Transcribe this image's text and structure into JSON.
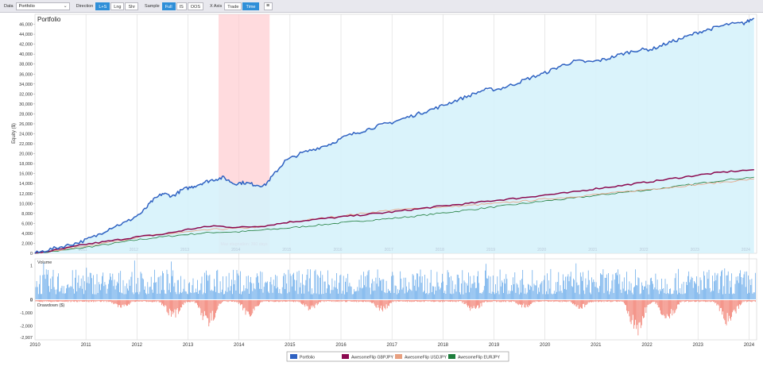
{
  "toolbar": {
    "data_label": "Data",
    "data_value": "Portfolio",
    "direction_label": "Direction",
    "direction_options": [
      "L+S",
      "Lng",
      "Shr"
    ],
    "sample_label": "Sample",
    "sample_options": [
      "Full",
      "IS",
      "OOS"
    ],
    "xaxis_label": "X Axis",
    "xaxis_options": [
      "Trade",
      "Time"
    ],
    "menu_icon": "hamburger-icon"
  },
  "colors": {
    "portfolio": "#2f62c2",
    "gbpjpy": "#8b0a50",
    "usdjpy": "#e8a080",
    "eurjpy": "#1e7d3c",
    "fill": "#d6f2fb",
    "volume": "#5aa2e8",
    "drawdown": "#ef6a5a",
    "stagnation": "#ffc8cc"
  },
  "chart_data": {
    "type": "line",
    "title": "Portfolio",
    "ylabel": "Equity ($)",
    "ylim": [
      0,
      48000
    ],
    "y_ticks": [
      "0",
      "2,000",
      "4,000",
      "6,000",
      "8,000",
      "10,000",
      "12,000",
      "14,000",
      "16,000",
      "18,000",
      "20,000",
      "22,000",
      "24,000",
      "26,000",
      "28,000",
      "30,000",
      "32,000",
      "34,000",
      "36,000",
      "38,000",
      "40,000",
      "42,000",
      "44,000",
      "46,000"
    ],
    "x_range": [
      2010,
      2024.15
    ],
    "x_ticks": [
      "2010",
      "2011",
      "2012",
      "2013",
      "2014",
      "2015",
      "2016",
      "2017",
      "2018",
      "2019",
      "2020",
      "2021",
      "2022",
      "2023",
      "2024"
    ],
    "inner_year_labels": [
      "2011",
      "2012",
      "2013",
      "2014",
      "2015",
      "2016",
      "2017",
      "2018",
      "2019",
      "2020",
      "2021",
      "2022",
      "2023",
      "2024"
    ],
    "stagnation": {
      "start": 2013.6,
      "end": 2014.6,
      "label": "Max stagnation: 360 days"
    },
    "series": [
      {
        "name": "Portfolio",
        "color": "#2f62c2",
        "x": [
          2010.0,
          2010.3,
          2010.6,
          2010.9,
          2011.2,
          2011.5,
          2011.8,
          2012.1,
          2012.3,
          2012.5,
          2012.7,
          2012.9,
          2013.1,
          2013.3,
          2013.5,
          2013.7,
          2013.9,
          2014.1,
          2014.3,
          2014.5,
          2014.7,
          2014.9,
          2015.2,
          2015.5,
          2015.8,
          2016.1,
          2016.4,
          2016.7,
          2017.0,
          2017.3,
          2017.6,
          2017.9,
          2018.2,
          2018.5,
          2018.8,
          2019.1,
          2019.4,
          2019.7,
          2020.0,
          2020.3,
          2020.6,
          2020.9,
          2021.2,
          2021.5,
          2021.8,
          2022.1,
          2022.4,
          2022.7,
          2023.0,
          2023.3,
          2023.6,
          2023.9,
          2024.1
        ],
        "y": [
          0,
          800,
          1500,
          2300,
          3500,
          5200,
          6300,
          8200,
          10500,
          12000,
          11500,
          12800,
          13400,
          14200,
          14800,
          15200,
          14000,
          14200,
          13800,
          13600,
          16000,
          18500,
          20000,
          21000,
          22000,
          23500,
          24500,
          25500,
          26300,
          27300,
          28300,
          29300,
          30500,
          31600,
          32800,
          33000,
          34000,
          35200,
          36200,
          37600,
          38600,
          38400,
          39000,
          40000,
          40800,
          41000,
          42200,
          43200,
          44400,
          45200,
          46000,
          46200,
          47200
        ]
      },
      {
        "name": "AwesomeFlip GBPJPY",
        "color": "#8b0a50",
        "x": [
          2010.0,
          2010.5,
          2011.0,
          2011.5,
          2012.0,
          2012.5,
          2013.0,
          2013.5,
          2014.0,
          2014.5,
          2015.0,
          2015.5,
          2016.0,
          2016.5,
          2017.0,
          2017.5,
          2018.0,
          2018.5,
          2019.0,
          2019.5,
          2020.0,
          2020.5,
          2021.0,
          2021.5,
          2022.0,
          2022.5,
          2023.0,
          2023.5,
          2024.1
        ],
        "y": [
          0,
          800,
          1800,
          2500,
          3300,
          3800,
          4800,
          5500,
          5200,
          5500,
          6300,
          6800,
          7300,
          7800,
          8300,
          8900,
          9500,
          10000,
          10600,
          11100,
          11700,
          12200,
          13000,
          13600,
          14300,
          15000,
          15700,
          16300,
          16800
        ]
      },
      {
        "name": "AwesomeFlip USDJPY",
        "color": "#e8a080",
        "x": [
          2010.0,
          2010.5,
          2011.0,
          2011.5,
          2012.0,
          2012.5,
          2013.0,
          2013.5,
          2014.0,
          2014.5,
          2015.0,
          2015.5,
          2016.0,
          2016.5,
          2017.0,
          2017.5,
          2018.0,
          2018.5,
          2019.0,
          2019.5,
          2020.0,
          2020.5,
          2021.0,
          2021.5,
          2022.0,
          2022.5,
          2023.0,
          2023.5,
          2024.1
        ],
        "y": [
          0,
          700,
          1500,
          2300,
          3200,
          3800,
          4300,
          4800,
          5000,
          5400,
          6200,
          6900,
          7500,
          8100,
          8700,
          9000,
          9300,
          9600,
          10000,
          10400,
          10900,
          11300,
          11800,
          12300,
          12800,
          13300,
          13800,
          14300,
          14900
        ]
      },
      {
        "name": "AwesomeFlip EURJPY",
        "color": "#1e7d3c",
        "x": [
          2010.0,
          2010.5,
          2011.0,
          2011.5,
          2012.0,
          2012.5,
          2013.0,
          2013.5,
          2014.0,
          2014.5,
          2015.0,
          2015.5,
          2016.0,
          2016.5,
          2017.0,
          2017.5,
          2018.0,
          2018.5,
          2019.0,
          2019.5,
          2020.0,
          2020.5,
          2021.0,
          2021.5,
          2022.0,
          2022.5,
          2023.0,
          2023.5,
          2024.1
        ],
        "y": [
          0,
          500,
          1200,
          1900,
          2700,
          3300,
          3800,
          4200,
          4300,
          4700,
          5100,
          5600,
          6100,
          6600,
          7000,
          7500,
          8100,
          8700,
          9300,
          9900,
          10500,
          11000,
          11600,
          12200,
          12700,
          13300,
          14000,
          14700,
          15300
        ]
      }
    ],
    "volume": {
      "title": "Volume",
      "y_ticks": [
        "0",
        "1"
      ],
      "ylim": [
        0,
        1.2
      ]
    },
    "drawdown": {
      "title": "Drawdown ($)",
      "y_ticks": [
        "0",
        "-1,000",
        "-2,000",
        "-2,907"
      ],
      "min": -2907
    },
    "legend": [
      "Portfolio",
      "AwesomeFlip GBPJPY",
      "AwesomeFlip USDJPY",
      "AwesomeFlip EURJPY"
    ],
    "legend_position": "bottom-center"
  }
}
